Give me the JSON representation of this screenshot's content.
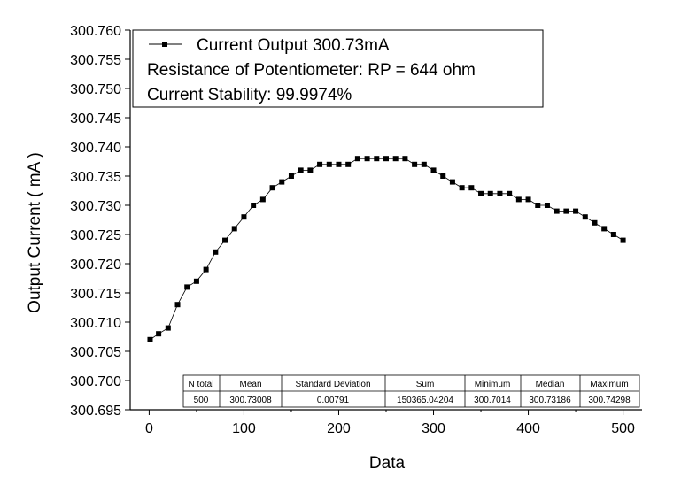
{
  "chart_data": {
    "type": "line",
    "title": "",
    "xlabel": "Data",
    "ylabel": "Output Current ( mA )",
    "xlim": [
      -20,
      520
    ],
    "ylim": [
      300.695,
      300.76
    ],
    "xticks": [
      0,
      100,
      200,
      300,
      400,
      500
    ],
    "xtick_labels": [
      "0",
      "100",
      "200",
      "300",
      "400",
      "500"
    ],
    "yticks": [
      300.695,
      300.7,
      300.705,
      300.71,
      300.715,
      300.72,
      300.725,
      300.73,
      300.735,
      300.74,
      300.745,
      300.75,
      300.755,
      300.76
    ],
    "ytick_labels": [
      "300.695",
      "300.700",
      "300.705",
      "300.710",
      "300.715",
      "300.720",
      "300.725",
      "300.730",
      "300.735",
      "300.740",
      "300.745",
      "300.750",
      "300.755",
      "300.760"
    ],
    "grid": false,
    "marker": "square",
    "legend": {
      "placement": "top-left",
      "lines": [
        "Current Output 300.73mA",
        "Resistance of Potentiometer: RP = 644 ohm",
        "Current Stability: 99.9974%"
      ]
    },
    "series": [
      {
        "name": "Current Output 300.73mA",
        "color": "#000000",
        "x": [
          1,
          10,
          20,
          30,
          40,
          50,
          60,
          70,
          80,
          90,
          100,
          110,
          120,
          130,
          140,
          150,
          160,
          170,
          180,
          190,
          200,
          210,
          220,
          230,
          240,
          250,
          260,
          270,
          280,
          290,
          300,
          310,
          320,
          330,
          340,
          350,
          360,
          370,
          380,
          390,
          400,
          410,
          420,
          430,
          440,
          450,
          460,
          470,
          480,
          490,
          500
        ],
        "y": [
          300.707,
          300.708,
          300.709,
          300.713,
          300.716,
          300.717,
          300.719,
          300.722,
          300.724,
          300.726,
          300.728,
          300.73,
          300.731,
          300.733,
          300.734,
          300.735,
          300.736,
          300.736,
          300.737,
          300.737,
          300.737,
          300.737,
          300.738,
          300.738,
          300.738,
          300.738,
          300.738,
          300.738,
          300.737,
          300.737,
          300.736,
          300.735,
          300.734,
          300.733,
          300.733,
          300.732,
          300.732,
          300.732,
          300.732,
          300.731,
          300.731,
          300.73,
          300.73,
          300.729,
          300.729,
          300.729,
          300.728,
          300.727,
          300.726,
          300.725,
          300.724
        ]
      }
    ],
    "stats_table": {
      "headers": [
        "N total",
        "Mean",
        "Standard Deviation",
        "Sum",
        "Minimum",
        "Median",
        "Maximum"
      ],
      "rows": [
        [
          "500",
          "300.73008",
          "0.00791",
          "150365.04204",
          "300.7014",
          "300.73186",
          "300.74298"
        ]
      ]
    }
  }
}
